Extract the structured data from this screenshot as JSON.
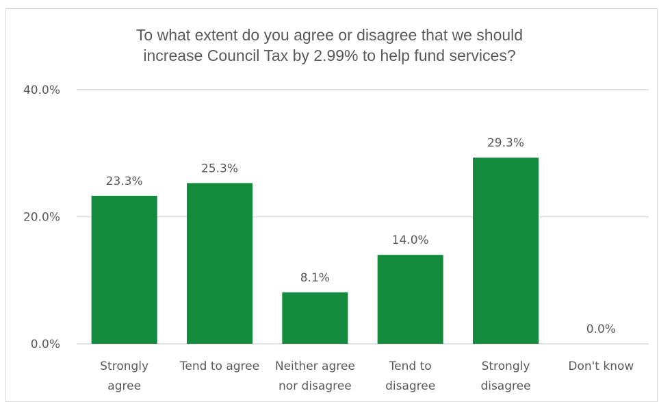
{
  "chart_data": {
    "type": "bar",
    "title_lines": [
      "To what extent do you agree or disagree that we should",
      "increase Council Tax by 2.99% to help fund services?"
    ],
    "categories": [
      [
        "Strongly",
        "agree"
      ],
      [
        "Tend to agree"
      ],
      [
        "Neither agree",
        "nor disagree"
      ],
      [
        "Tend to",
        "disagree"
      ],
      [
        "Strongly",
        "disagree"
      ],
      [
        "Don't know"
      ]
    ],
    "values": [
      23.3,
      25.3,
      8.1,
      14.0,
      29.3,
      0.0
    ],
    "data_labels": [
      "23.3%",
      "25.3%",
      "8.1%",
      "14.0%",
      "29.3%",
      "0.0%"
    ],
    "yticks": [
      0,
      20,
      40
    ],
    "ytick_labels": [
      "0.0%",
      "20.0%",
      "40.0%"
    ],
    "ylim": [
      0,
      40
    ],
    "grid": true,
    "bar_color": "#138a3c",
    "grid_color": "#d9d9d9"
  }
}
